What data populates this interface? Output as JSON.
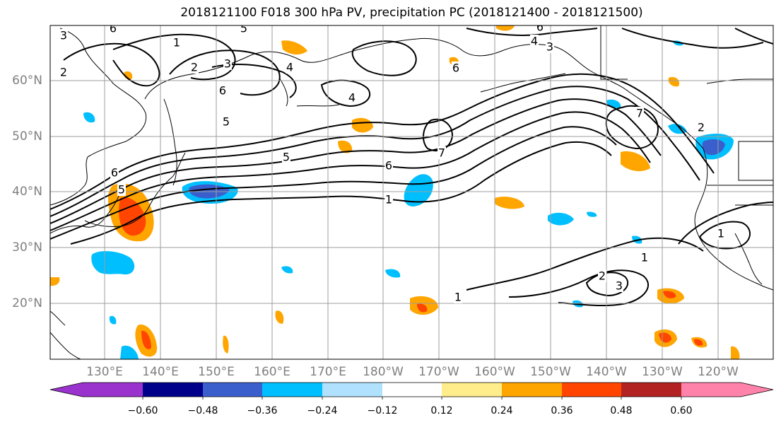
{
  "title": "2018121100 F018 300 hPa PV, precipitation PC (2018121400 - 2018121500)",
  "lon_labels": [
    "130°E",
    "140°E",
    "150°E",
    "160°E",
    "170°E",
    "180°W",
    "170°W",
    "160°W",
    "150°W",
    "140°W",
    "130°W",
    "120°W"
  ],
  "lat_labels": [
    "60°N",
    "50°N",
    "40°N",
    "30°N",
    "20°N"
  ],
  "colorbar": {
    "colors": [
      "#9a32cd",
      "#00008b",
      "#3a5fcd",
      "#00bfff",
      "#b0e2ff",
      "#ffffff",
      "#ffec8b",
      "#ffa500",
      "#ff4500",
      "#b22222",
      "#ff82ab"
    ],
    "edge_colors": [
      "#9a32cd",
      "#ff82ab"
    ],
    "labels": [
      "−0.60",
      "−0.48",
      "−0.36",
      "−0.24",
      "−0.12",
      "0.12",
      "0.24",
      "0.36",
      "0.48",
      "0.60"
    ]
  },
  "contour_labels": [
    "3",
    "2",
    "1",
    "2",
    "3",
    "4",
    "6",
    "5",
    "4",
    "6",
    "4",
    "3",
    "6",
    "5",
    "6",
    "7",
    "5",
    "6",
    "1",
    "7",
    "2",
    "1",
    "1",
    "2",
    "3",
    "1",
    "5",
    "6"
  ]
}
